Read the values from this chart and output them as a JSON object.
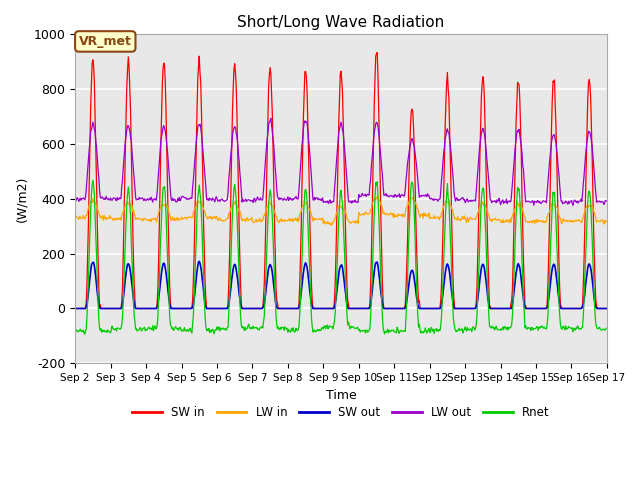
{
  "title": "Short/Long Wave Radiation",
  "xlabel": "Time",
  "ylabel": "(W/m2)",
  "ylim": [
    -200,
    1000
  ],
  "xlim": [
    0,
    720
  ],
  "bg_color": "#e8e8e8",
  "grid_color": "white",
  "series": {
    "SW_in": {
      "color": "#ff0000",
      "label": "SW in"
    },
    "LW_in": {
      "color": "#ffa500",
      "label": "LW in"
    },
    "SW_out": {
      "color": "#0000cc",
      "label": "SW out"
    },
    "LW_out": {
      "color": "#9900cc",
      "label": "LW out"
    },
    "Rnet": {
      "color": "#00cc00",
      "label": "Rnet"
    }
  },
  "xtick_labels": [
    "Sep 2",
    "Sep 3",
    "Sep 4",
    "Sep 5",
    "Sep 6",
    "Sep 7",
    "Sep 8",
    "Sep 9",
    "Sep 10",
    "Sep 11",
    "Sep 12",
    "Sep 13",
    "Sep 14",
    "Sep 15",
    "Sep 16",
    "Sep 17"
  ],
  "xtick_positions": [
    0,
    48,
    96,
    144,
    192,
    240,
    288,
    336,
    384,
    432,
    480,
    528,
    576,
    624,
    672,
    720
  ],
  "ytick_values": [
    -200,
    0,
    200,
    400,
    600,
    800,
    1000
  ],
  "annotation_text": "VR_met",
  "day_hours": 48,
  "num_days": 15,
  "daytime_start_h": 14,
  "daytime_end_h": 34,
  "SW_in_peaks": [
    910,
    900,
    900,
    905,
    895,
    875,
    870,
    860,
    930,
    735,
    840,
    845,
    845,
    835,
    835
  ],
  "SW_out_peaks": [
    170,
    165,
    165,
    170,
    160,
    162,
    165,
    160,
    170,
    140,
    162,
    162,
    162,
    162,
    162
  ],
  "LW_out_day": [
    610,
    605,
    600,
    608,
    600,
    618,
    620,
    608,
    612,
    570,
    592,
    592,
    590,
    578,
    585
  ],
  "LW_out_night": [
    400,
    398,
    395,
    400,
    394,
    398,
    398,
    388,
    412,
    412,
    398,
    393,
    388,
    388,
    388
  ],
  "LW_in_day": [
    390,
    385,
    382,
    388,
    382,
    378,
    382,
    373,
    403,
    400,
    388,
    382,
    378,
    378,
    378
  ],
  "LW_in_night": [
    332,
    326,
    323,
    330,
    323,
    318,
    323,
    313,
    343,
    340,
    328,
    323,
    318,
    318,
    318
  ],
  "Rnet_day_peaks": [
    462,
    442,
    448,
    452,
    448,
    428,
    432,
    428,
    458,
    458,
    442,
    438,
    438,
    422,
    428
  ],
  "Rnet_night": [
    -82,
    -76,
    -73,
    -80,
    -73,
    -73,
    -78,
    -68,
    -83,
    -83,
    -78,
    -73,
    -73,
    -73,
    -73
  ]
}
